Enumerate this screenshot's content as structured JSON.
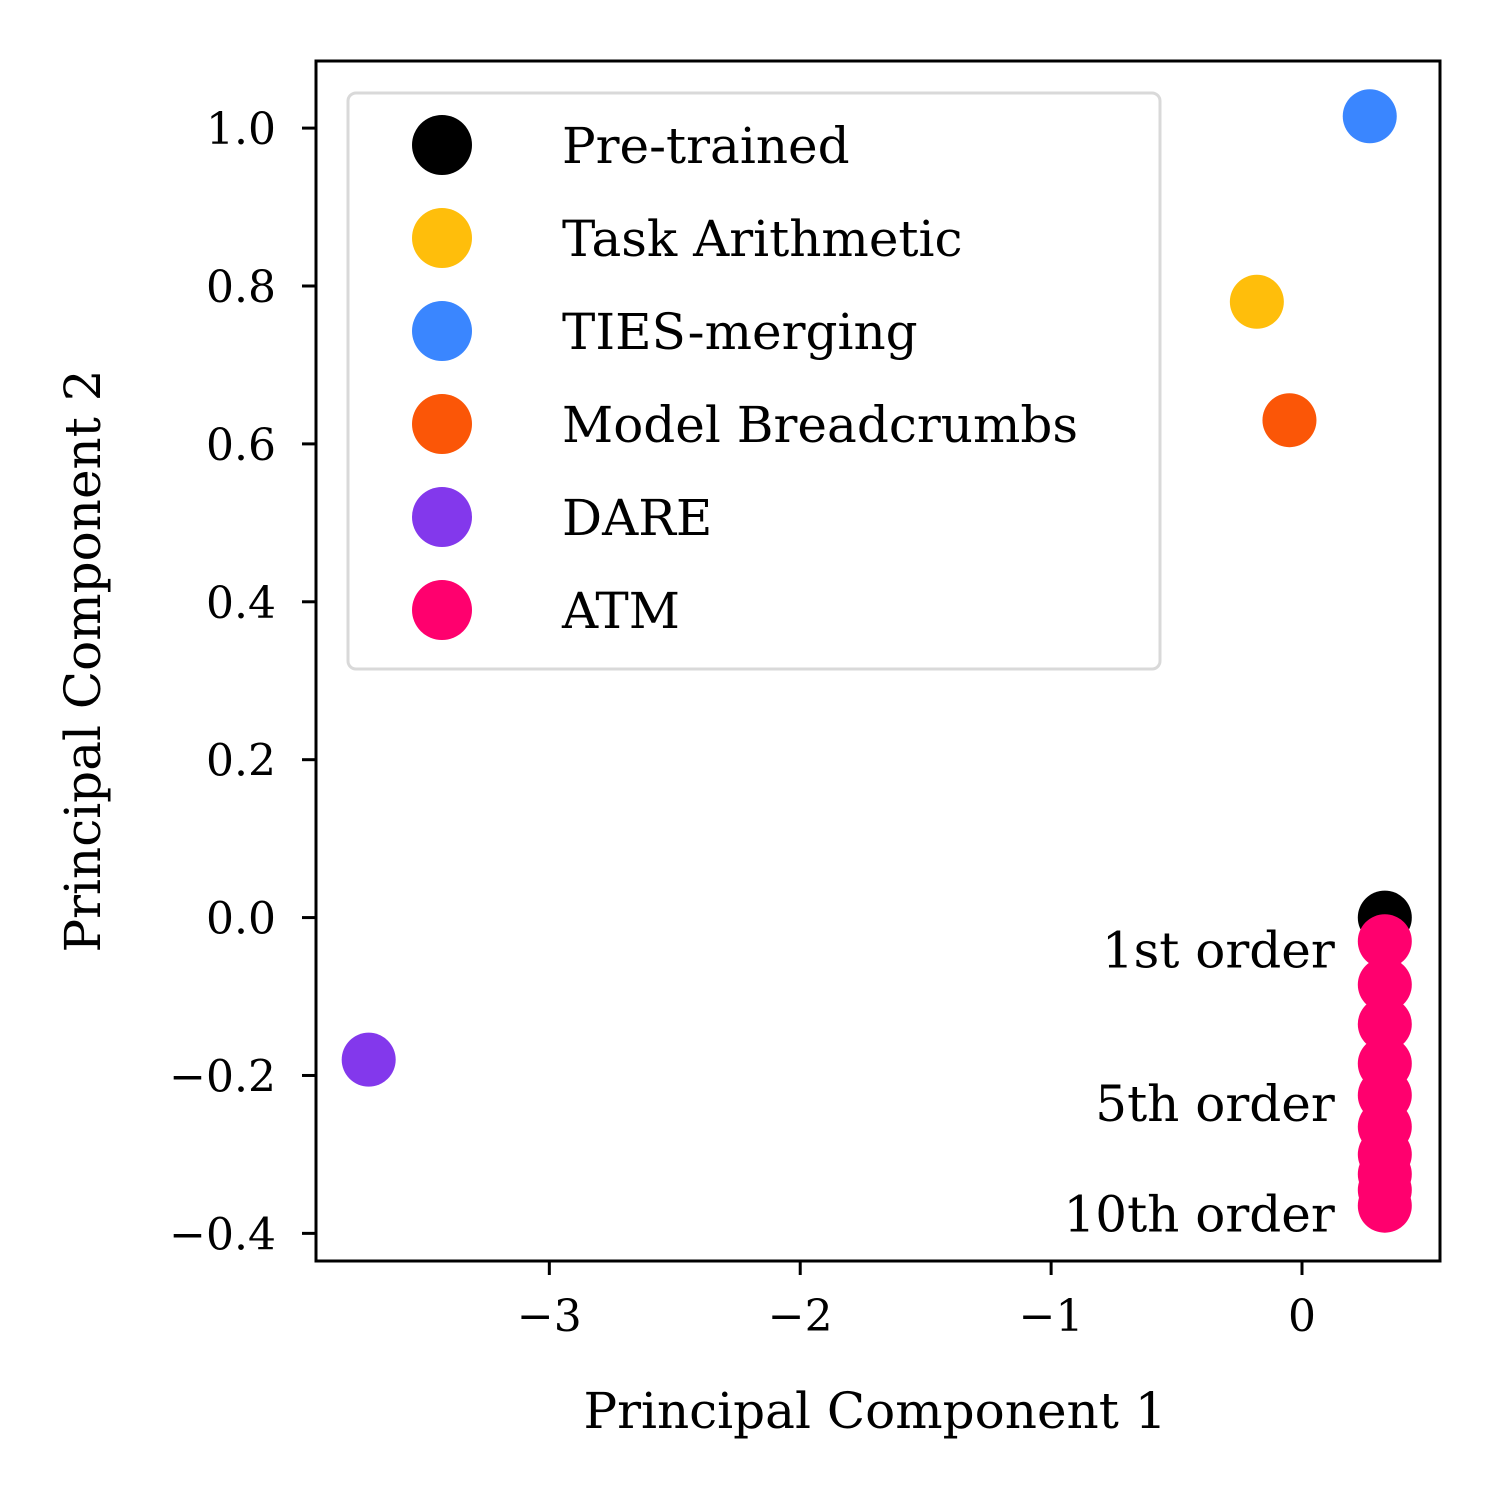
{
  "chart_data": {
    "type": "scatter",
    "xlabel": "Principal Component 1",
    "ylabel": "Principal Component 2",
    "xlim": [
      -3.93,
      0.55
    ],
    "ylim": [
      -0.435,
      1.085
    ],
    "xticks": [
      {
        "value": -3,
        "label": "−3"
      },
      {
        "value": -2,
        "label": "−2"
      },
      {
        "value": -1,
        "label": "−1"
      },
      {
        "value": 0,
        "label": "0"
      }
    ],
    "yticks": [
      {
        "value": 1.0,
        "label": "1.0"
      },
      {
        "value": 0.8,
        "label": "0.8"
      },
      {
        "value": 0.6,
        "label": "0.6"
      },
      {
        "value": 0.4,
        "label": "0.4"
      },
      {
        "value": 0.2,
        "label": "0.2"
      },
      {
        "value": 0.0,
        "label": "0.0"
      },
      {
        "value": -0.2,
        "label": "−0.2"
      },
      {
        "value": -0.4,
        "label": "−0.4"
      }
    ],
    "grid": false,
    "legend_position": "top-left",
    "series": [
      {
        "name": "Pre-trained",
        "color": "#000000",
        "points": [
          {
            "x": 0.33,
            "y": 0.0
          }
        ]
      },
      {
        "name": "Task Arithmetic",
        "color": "#FFBE0B",
        "points": [
          {
            "x": -0.18,
            "y": 0.78
          }
        ]
      },
      {
        "name": "TIES-merging",
        "color": "#3A86FF",
        "points": [
          {
            "x": 0.27,
            "y": 1.015
          }
        ]
      },
      {
        "name": "Model Breadcrumbs",
        "color": "#FB5607",
        "points": [
          {
            "x": -0.05,
            "y": 0.63
          }
        ]
      },
      {
        "name": "DARE",
        "color": "#8338EC",
        "points": [
          {
            "x": -3.72,
            "y": -0.18
          }
        ]
      },
      {
        "name": "ATM",
        "color": "#FF006E",
        "points": [
          {
            "x": 0.33,
            "y": -0.03
          },
          {
            "x": 0.33,
            "y": -0.085
          },
          {
            "x": 0.33,
            "y": -0.135
          },
          {
            "x": 0.33,
            "y": -0.185
          },
          {
            "x": 0.33,
            "y": -0.225
          },
          {
            "x": 0.33,
            "y": -0.265
          },
          {
            "x": 0.33,
            "y": -0.3
          },
          {
            "x": 0.33,
            "y": -0.325
          },
          {
            "x": 0.33,
            "y": -0.345
          },
          {
            "x": 0.33,
            "y": -0.365
          }
        ]
      }
    ],
    "annotations": [
      {
        "text": "1st order",
        "x": 0.33,
        "y": -0.03
      },
      {
        "text": "5th order",
        "x": 0.33,
        "y": -0.225
      },
      {
        "text": "10th order",
        "x": 0.33,
        "y": -0.365
      }
    ]
  }
}
